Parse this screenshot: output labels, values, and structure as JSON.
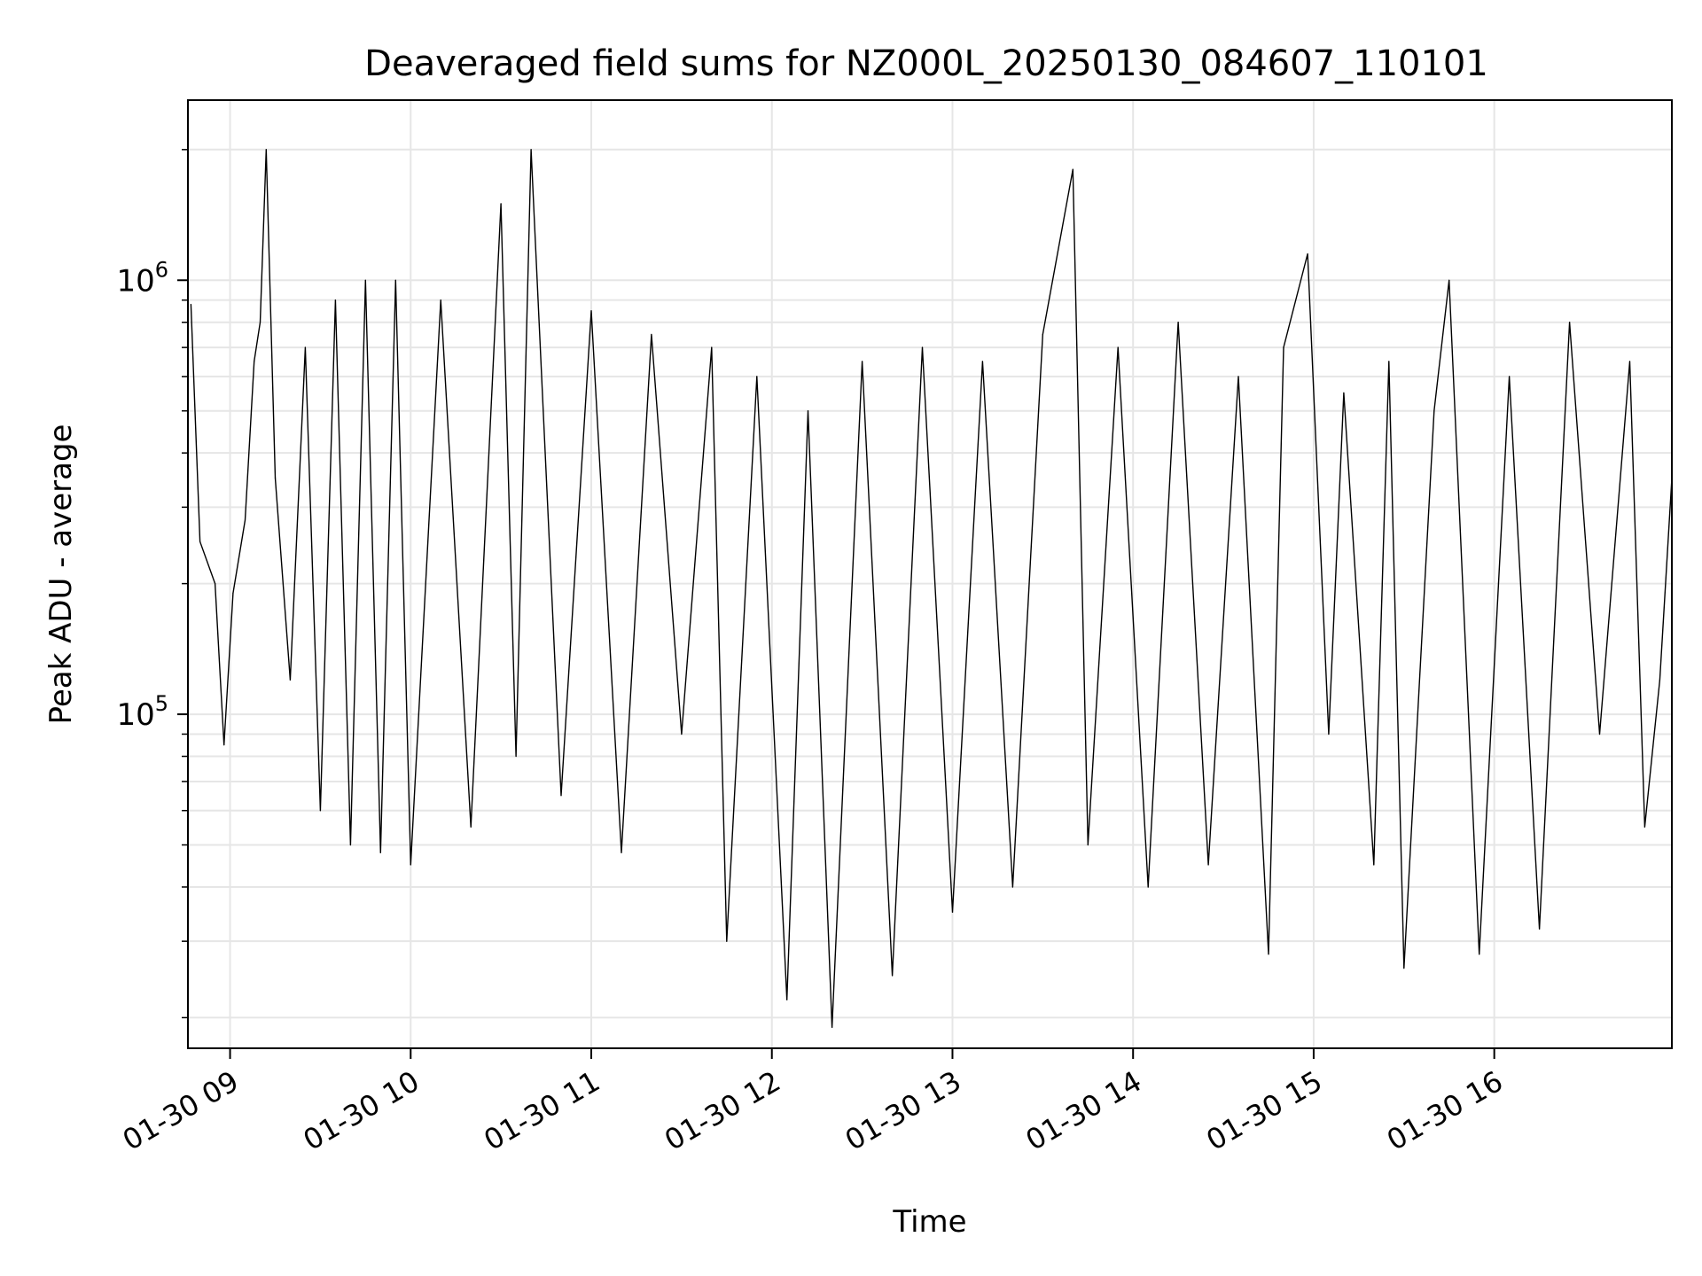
{
  "chart_data": {
    "type": "line",
    "title": "Deaveraged field sums for NZ000L_20250130_084607_110101",
    "xlabel": "Time",
    "ylabel": "Peak ADU - average",
    "yscale": "log",
    "xlim": [
      "2025-01-30 08:46",
      "2025-01-30 16:59"
    ],
    "ylim": [
      17000,
      2600000
    ],
    "x_ticks": [
      {
        "value": "2025-01-30 09:00",
        "label": "01-30 09"
      },
      {
        "value": "2025-01-30 10:00",
        "label": "01-30 10"
      },
      {
        "value": "2025-01-30 11:00",
        "label": "01-30 11"
      },
      {
        "value": "2025-01-30 12:00",
        "label": "01-30 12"
      },
      {
        "value": "2025-01-30 13:00",
        "label": "01-30 13"
      },
      {
        "value": "2025-01-30 14:00",
        "label": "01-30 14"
      },
      {
        "value": "2025-01-30 15:00",
        "label": "01-30 15"
      },
      {
        "value": "2025-01-30 16:00",
        "label": "01-30 16"
      }
    ],
    "y_major_ticks": [
      {
        "value": 100000,
        "base": "10",
        "exp": "5"
      },
      {
        "value": 1000000,
        "base": "10",
        "exp": "6"
      }
    ],
    "grid": true,
    "line_color": "#000000",
    "grid_color": "#e6e6e6",
    "x": [
      "2025-01-30 08:47",
      "2025-01-30 08:50",
      "2025-01-30 08:55",
      "2025-01-30 08:58",
      "2025-01-30 09:01",
      "2025-01-30 09:05",
      "2025-01-30 09:08",
      "2025-01-30 09:10",
      "2025-01-30 09:12",
      "2025-01-30 09:15",
      "2025-01-30 09:20",
      "2025-01-30 09:25",
      "2025-01-30 09:30",
      "2025-01-30 09:35",
      "2025-01-30 09:40",
      "2025-01-30 09:45",
      "2025-01-30 09:50",
      "2025-01-30 09:55",
      "2025-01-30 10:00",
      "2025-01-30 10:10",
      "2025-01-30 10:20",
      "2025-01-30 10:30",
      "2025-01-30 10:35",
      "2025-01-30 10:40",
      "2025-01-30 10:50",
      "2025-01-30 11:00",
      "2025-01-30 11:10",
      "2025-01-30 11:20",
      "2025-01-30 11:30",
      "2025-01-30 11:40",
      "2025-01-30 11:45",
      "2025-01-30 11:55",
      "2025-01-30 12:05",
      "2025-01-30 12:12",
      "2025-01-30 12:20",
      "2025-01-30 12:30",
      "2025-01-30 12:40",
      "2025-01-30 12:50",
      "2025-01-30 13:00",
      "2025-01-30 13:10",
      "2025-01-30 13:20",
      "2025-01-30 13:30",
      "2025-01-30 13:40",
      "2025-01-30 13:45",
      "2025-01-30 13:55",
      "2025-01-30 14:05",
      "2025-01-30 14:15",
      "2025-01-30 14:25",
      "2025-01-30 14:35",
      "2025-01-30 14:45",
      "2025-01-30 14:50",
      "2025-01-30 14:58",
      "2025-01-30 15:05",
      "2025-01-30 15:10",
      "2025-01-30 15:20",
      "2025-01-30 15:25",
      "2025-01-30 15:30",
      "2025-01-30 15:40",
      "2025-01-30 15:45",
      "2025-01-30 15:55",
      "2025-01-30 16:05",
      "2025-01-30 16:15",
      "2025-01-30 16:25",
      "2025-01-30 16:35",
      "2025-01-30 16:45",
      "2025-01-30 16:50",
      "2025-01-30 16:55",
      "2025-01-30 16:59"
    ],
    "y": [
      880000,
      250000,
      200000,
      85000,
      190000,
      280000,
      650000,
      800000,
      2000000,
      350000,
      120000,
      700000,
      60000,
      900000,
      50000,
      1000000,
      48000,
      1000000,
      45000,
      900000,
      55000,
      1500000,
      80000,
      2000000,
      65000,
      850000,
      48000,
      750000,
      90000,
      700000,
      30000,
      600000,
      22000,
      500000,
      19000,
      650000,
      25000,
      700000,
      35000,
      650000,
      40000,
      750000,
      1800000,
      50000,
      700000,
      40000,
      800000,
      45000,
      600000,
      28000,
      700000,
      1150000,
      90000,
      550000,
      45000,
      650000,
      26000,
      500000,
      1000000,
      28000,
      600000,
      32000,
      800000,
      90000,
      650000,
      55000,
      120000,
      350000
    ],
    "series": [
      {
        "name": "",
        "series_type": "line"
      }
    ]
  }
}
